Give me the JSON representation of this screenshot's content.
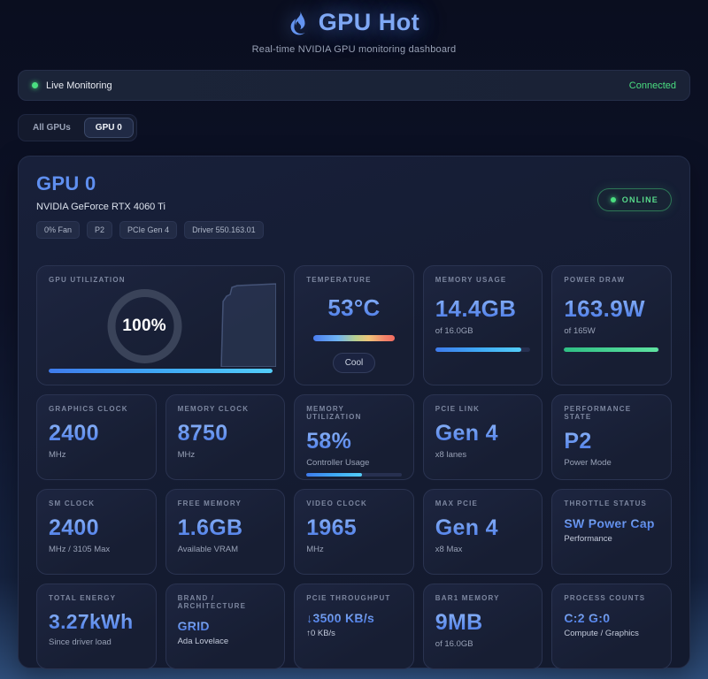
{
  "colors": {
    "accent_blue": "#6191ee",
    "green": "#4ade80"
  },
  "header": {
    "title": "GPU Hot",
    "subtitle": "Real-time NVIDIA GPU monitoring dashboard"
  },
  "status_bar": {
    "label": "Live Monitoring",
    "connection": "Connected"
  },
  "tabs": {
    "all": "All GPUs",
    "gpu0": "GPU 0"
  },
  "gpu_card": {
    "title": "GPU 0",
    "name": "NVIDIA GeForce RTX 4060 Ti",
    "badges": [
      "0% Fan",
      "P2",
      "PCIe Gen 4",
      "Driver 550.163.01"
    ],
    "online": "ONLINE"
  },
  "metrics": {
    "gpu_utilization": {
      "label": "GPU UTILIZATION",
      "value": "100%",
      "bar_pct": 100
    },
    "temperature": {
      "label": "TEMPERATURE",
      "value": "53°C",
      "status": "Cool"
    },
    "memory_usage": {
      "label": "MEMORY USAGE",
      "value": "14.4GB",
      "sub": "of 16.0GB",
      "bar_pct": 90
    },
    "power_draw": {
      "label": "POWER DRAW",
      "value": "163.9W",
      "sub": "of 165W",
      "bar_pct": 99
    },
    "graphics_clock": {
      "label": "GRAPHICS CLOCK",
      "value": "2400",
      "sub": "MHz"
    },
    "memory_clock": {
      "label": "MEMORY CLOCK",
      "value": "8750",
      "sub": "MHz"
    },
    "memory_utilization": {
      "label": "MEMORY UTILIZATION",
      "value": "58%",
      "sub": "Controller Usage",
      "bar_pct": 58
    },
    "pcie_link": {
      "label": "PCIE LINK",
      "value": "Gen 4",
      "sub": "x8 lanes"
    },
    "performance_state": {
      "label": "PERFORMANCE STATE",
      "value": "P2",
      "sub": "Power Mode"
    },
    "sm_clock": {
      "label": "SM CLOCK",
      "value": "2400",
      "sub": "MHz / 3105 Max"
    },
    "free_memory": {
      "label": "FREE MEMORY",
      "value": "1.6GB",
      "sub": "Available VRAM"
    },
    "video_clock": {
      "label": "VIDEO CLOCK",
      "value": "1965",
      "sub": "MHz"
    },
    "max_pcie": {
      "label": "MAX PCIE",
      "value": "Gen 4",
      "sub": "x8 Max"
    },
    "throttle_status": {
      "label": "THROTTLE STATUS",
      "value": "SW Power Cap",
      "sub": "Performance"
    },
    "total_energy": {
      "label": "TOTAL ENERGY",
      "value": "3.27kWh",
      "sub": "Since driver load"
    },
    "brand": {
      "label": "BRAND / ARCHITECTURE",
      "value": "GRID",
      "sub": "Ada Lovelace"
    },
    "pcie_throughput": {
      "label": "PCIE THROUGHPUT",
      "value": "↓3500 KB/s",
      "sub": "↑0 KB/s"
    },
    "bar1_memory": {
      "label": "BAR1 MEMORY",
      "value": "9MB",
      "sub": "of 16.0GB"
    },
    "process_counts": {
      "label": "PROCESS COUNTS",
      "value": "C:2 G:0",
      "sub": "Compute / Graphics"
    }
  }
}
